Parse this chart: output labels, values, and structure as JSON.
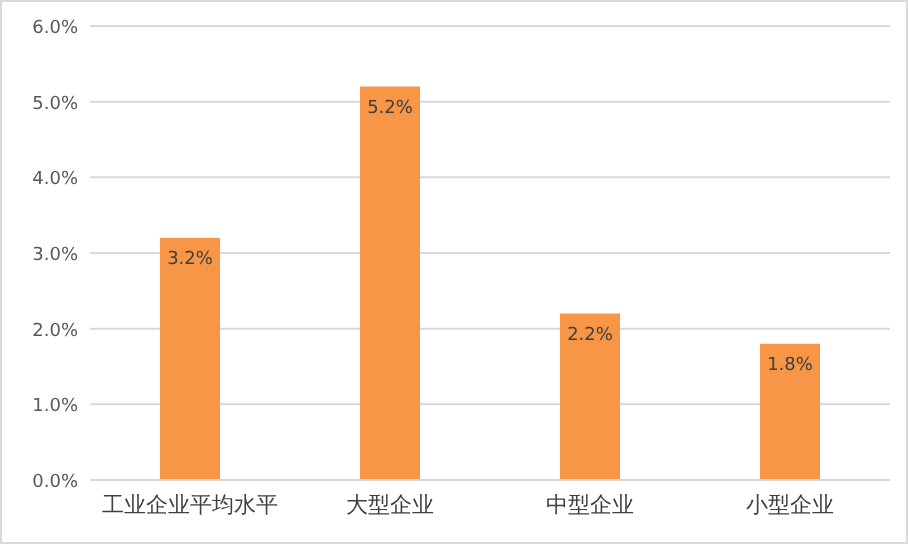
{
  "chart_data": {
    "type": "bar",
    "categories": [
      "工业企业平均水平",
      "大型企业",
      "中型企业",
      "小型企业"
    ],
    "values": [
      3.2,
      5.2,
      2.2,
      1.8
    ],
    "value_labels": [
      "3.2%",
      "5.2%",
      "2.2%",
      "1.8%"
    ],
    "color": "#f79646",
    "ylim": [
      0,
      6
    ],
    "yticks": [
      {
        "value": 0,
        "label": "0.0%"
      },
      {
        "value": 1,
        "label": "1.0%"
      },
      {
        "value": 2,
        "label": "2.0%"
      },
      {
        "value": 3,
        "label": "3.0%"
      },
      {
        "value": 4,
        "label": "4.0%"
      },
      {
        "value": 5,
        "label": "5.0%"
      },
      {
        "value": 6,
        "label": "6.0%"
      }
    ],
    "grid": "y"
  }
}
